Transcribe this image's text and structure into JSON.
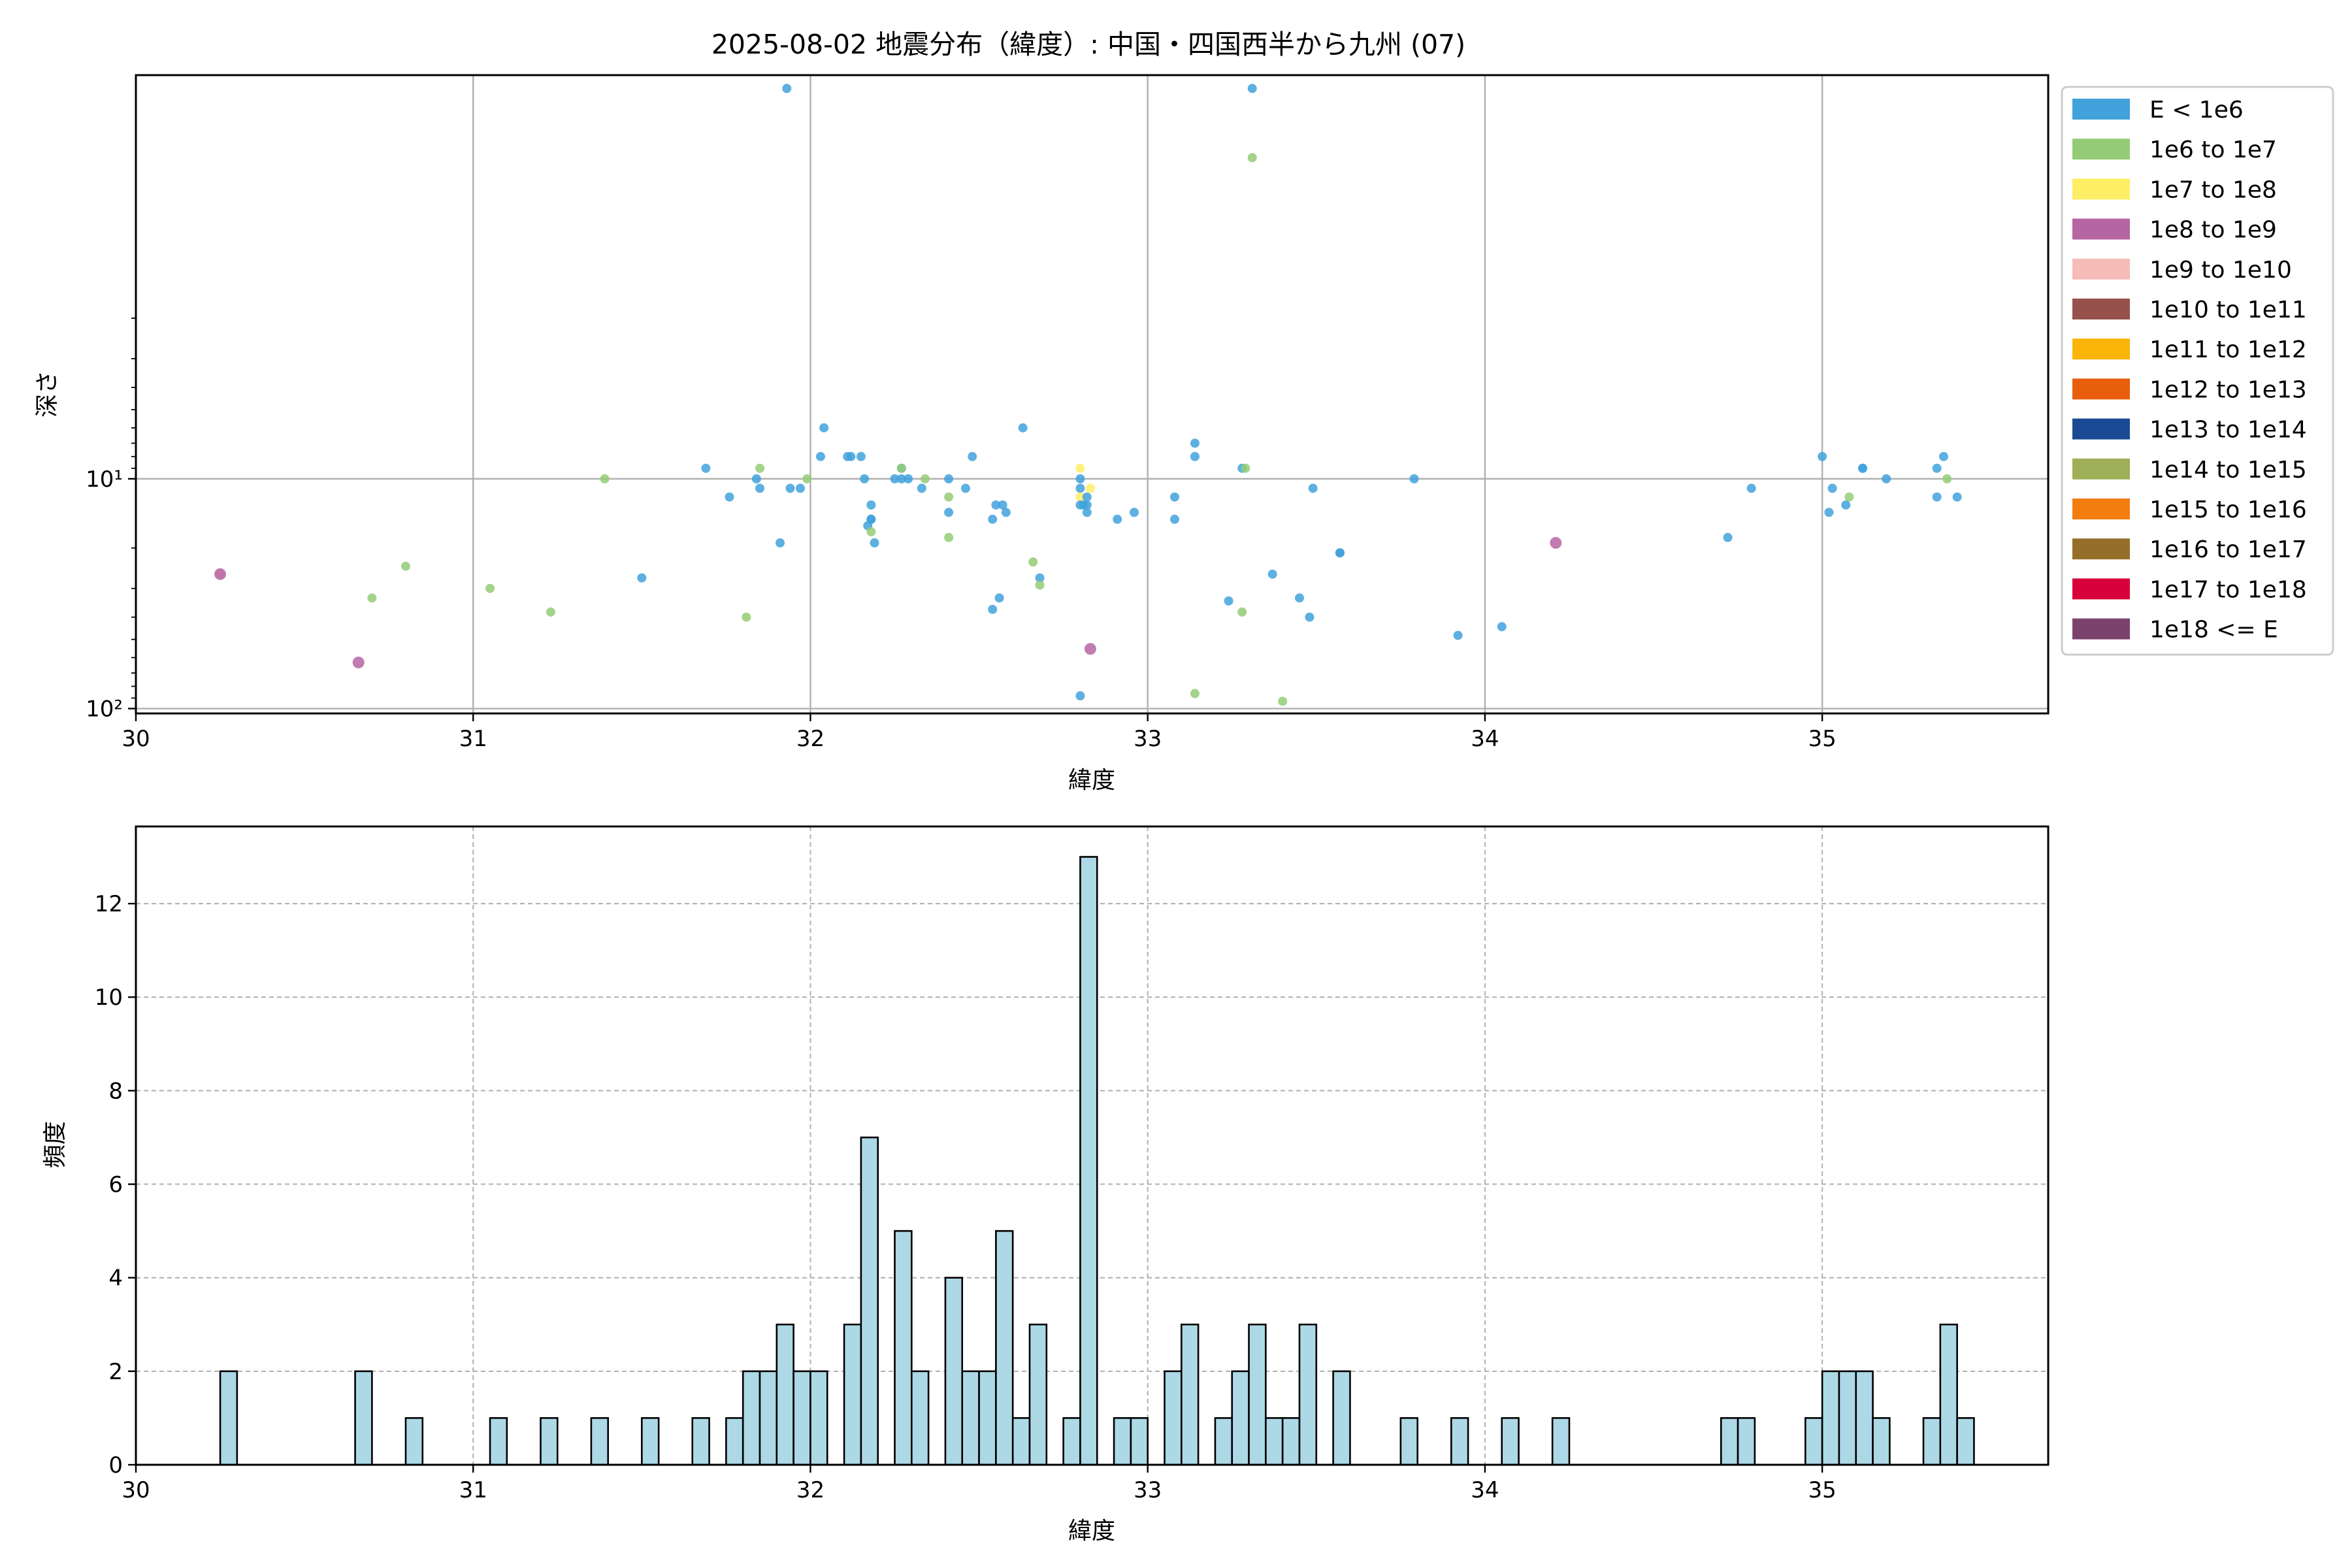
{
  "chart_data": [
    {
      "type": "scatter",
      "title": "2025-08-02 地震分布（緯度）: 中国・四国西半から九州 (07)",
      "xlabel": "緯度",
      "ylabel": "深さ",
      "xlim": [
        30,
        35.67
      ],
      "ylim": [
        105,
        0.175
      ],
      "yscale": "log",
      "y_inverted": true,
      "grid": true,
      "x_ticks": [
        "30",
        "31",
        "32",
        "33",
        "34",
        "35"
      ],
      "y_ticks": [
        "10¹",
        "10²"
      ],
      "legend_position": "outside-right",
      "legend": [
        {
          "label": "E < 1e6",
          "color": "#41a2dc"
        },
        {
          "label": "1e6 to 1e7",
          "color": "#94cc76"
        },
        {
          "label": "1e7 to 1e8",
          "color": "#fdee65"
        },
        {
          "label": "1e8 to 1e9",
          "color": "#b665a3"
        },
        {
          "label": "1e9 to 1e10",
          "color": "#f5bcb8"
        },
        {
          "label": "1e10 to 1e11",
          "color": "#96514d"
        },
        {
          "label": "1e11 to 1e12",
          "color": "#fab40a"
        },
        {
          "label": "1e12 to 1e13",
          "color": "#e95e0d"
        },
        {
          "label": "1e13 to 1e14",
          "color": "#1a4a94"
        },
        {
          "label": "1e14 to 1e15",
          "color": "#9faf57"
        },
        {
          "label": "1e15 to 1e16",
          "color": "#f47d10"
        },
        {
          "label": "1e16 to 1e17",
          "color": "#956f29"
        },
        {
          "label": "1e17 to 1e18",
          "color": "#d7003a"
        },
        {
          "label": "1e18 <= E",
          "color": "#7b426e"
        }
      ],
      "points": [
        {
          "x": 31.93,
          "y": 0.2,
          "c": 0
        },
        {
          "x": 33.31,
          "y": 0.2,
          "c": 0
        },
        {
          "x": 33.31,
          "y": 0.4,
          "c": 1
        },
        {
          "x": 32.04,
          "y": 6.0,
          "c": 0
        },
        {
          "x": 32.63,
          "y": 6.0,
          "c": 0
        },
        {
          "x": 33.14,
          "y": 7.0,
          "c": 0
        },
        {
          "x": 32.03,
          "y": 8.0,
          "c": 0
        },
        {
          "x": 32.11,
          "y": 8.0,
          "c": 0
        },
        {
          "x": 32.12,
          "y": 8.0,
          "c": 0
        },
        {
          "x": 32.15,
          "y": 8.0,
          "c": 0
        },
        {
          "x": 32.48,
          "y": 8.0,
          "c": 0
        },
        {
          "x": 33.14,
          "y": 8.0,
          "c": 0
        },
        {
          "x": 35.0,
          "y": 8.0,
          "c": 0
        },
        {
          "x": 35.36,
          "y": 8.0,
          "c": 0
        },
        {
          "x": 31.69,
          "y": 9.0,
          "c": 0
        },
        {
          "x": 31.85,
          "y": 9.0,
          "c": 1
        },
        {
          "x": 32.27,
          "y": 9.0,
          "c": 0
        },
        {
          "x": 32.27,
          "y": 9.0,
          "c": 1
        },
        {
          "x": 32.8,
          "y": 9.0,
          "c": 2
        },
        {
          "x": 33.28,
          "y": 9.0,
          "c": 0
        },
        {
          "x": 33.29,
          "y": 9.0,
          "c": 1
        },
        {
          "x": 35.12,
          "y": 9.0,
          "c": 0
        },
        {
          "x": 35.12,
          "y": 9.0,
          "c": 0
        },
        {
          "x": 35.34,
          "y": 9.0,
          "c": 0
        },
        {
          "x": 31.39,
          "y": 10.0,
          "c": 1
        },
        {
          "x": 31.84,
          "y": 10.0,
          "c": 0
        },
        {
          "x": 31.99,
          "y": 10.0,
          "c": 1
        },
        {
          "x": 32.16,
          "y": 10.0,
          "c": 0
        },
        {
          "x": 32.25,
          "y": 10.0,
          "c": 0
        },
        {
          "x": 32.27,
          "y": 10.0,
          "c": 0
        },
        {
          "x": 32.29,
          "y": 10.0,
          "c": 0
        },
        {
          "x": 32.34,
          "y": 10.0,
          "c": 1
        },
        {
          "x": 32.41,
          "y": 10.0,
          "c": 0
        },
        {
          "x": 32.8,
          "y": 10.0,
          "c": 0
        },
        {
          "x": 33.79,
          "y": 10.0,
          "c": 0
        },
        {
          "x": 35.19,
          "y": 10.0,
          "c": 0
        },
        {
          "x": 35.37,
          "y": 10.0,
          "c": 1
        },
        {
          "x": 31.85,
          "y": 11.0,
          "c": 0
        },
        {
          "x": 31.94,
          "y": 11.0,
          "c": 0
        },
        {
          "x": 31.97,
          "y": 11.0,
          "c": 0
        },
        {
          "x": 32.33,
          "y": 11.0,
          "c": 0
        },
        {
          "x": 32.46,
          "y": 11.0,
          "c": 0
        },
        {
          "x": 32.8,
          "y": 11.0,
          "c": 0
        },
        {
          "x": 32.83,
          "y": 11.0,
          "c": 2
        },
        {
          "x": 33.49,
          "y": 11.0,
          "c": 0
        },
        {
          "x": 34.79,
          "y": 11.0,
          "c": 0
        },
        {
          "x": 35.03,
          "y": 11.0,
          "c": 0
        },
        {
          "x": 31.76,
          "y": 12.0,
          "c": 0
        },
        {
          "x": 32.41,
          "y": 12.0,
          "c": 1
        },
        {
          "x": 32.8,
          "y": 12.0,
          "c": 2
        },
        {
          "x": 32.82,
          "y": 12.0,
          "c": 0
        },
        {
          "x": 33.08,
          "y": 12.0,
          "c": 0
        },
        {
          "x": 35.08,
          "y": 12.0,
          "c": 1
        },
        {
          "x": 35.34,
          "y": 12.0,
          "c": 0
        },
        {
          "x": 35.4,
          "y": 12.0,
          "c": 0
        },
        {
          "x": 32.18,
          "y": 13.0,
          "c": 0
        },
        {
          "x": 32.55,
          "y": 13.0,
          "c": 0
        },
        {
          "x": 32.57,
          "y": 13.0,
          "c": 0
        },
        {
          "x": 32.8,
          "y": 13.0,
          "c": 0
        },
        {
          "x": 32.81,
          "y": 13.0,
          "c": 0
        },
        {
          "x": 32.82,
          "y": 13.0,
          "c": 0
        },
        {
          "x": 35.07,
          "y": 13.0,
          "c": 0
        },
        {
          "x": 32.41,
          "y": 14.0,
          "c": 0
        },
        {
          "x": 32.58,
          "y": 14.0,
          "c": 0
        },
        {
          "x": 32.82,
          "y": 14.0,
          "c": 0
        },
        {
          "x": 32.96,
          "y": 14.0,
          "c": 0
        },
        {
          "x": 35.02,
          "y": 14.0,
          "c": 0
        },
        {
          "x": 32.18,
          "y": 15.0,
          "c": 0
        },
        {
          "x": 32.18,
          "y": 15.0,
          "c": 0
        },
        {
          "x": 32.54,
          "y": 15.0,
          "c": 0
        },
        {
          "x": 32.91,
          "y": 15.0,
          "c": 0
        },
        {
          "x": 33.08,
          "y": 15.0,
          "c": 0
        },
        {
          "x": 32.17,
          "y": 16.0,
          "c": 0
        },
        {
          "x": 32.18,
          "y": 17.0,
          "c": 1
        },
        {
          "x": 32.41,
          "y": 18.0,
          "c": 1
        },
        {
          "x": 34.72,
          "y": 18.0,
          "c": 0
        },
        {
          "x": 31.91,
          "y": 19.0,
          "c": 0
        },
        {
          "x": 32.19,
          "y": 19.0,
          "c": 0
        },
        {
          "x": 34.21,
          "y": 19.0,
          "c": 3
        },
        {
          "x": 33.57,
          "y": 21.0,
          "c": 0
        },
        {
          "x": 33.57,
          "y": 21.0,
          "c": 0
        },
        {
          "x": 32.66,
          "y": 23.0,
          "c": 1
        },
        {
          "x": 30.8,
          "y": 24.0,
          "c": 1
        },
        {
          "x": 30.25,
          "y": 26.0,
          "c": 4
        },
        {
          "x": 30.25,
          "y": 26.0,
          "c": 3
        },
        {
          "x": 33.37,
          "y": 26.0,
          "c": 0
        },
        {
          "x": 31.5,
          "y": 27.0,
          "c": 0
        },
        {
          "x": 32.68,
          "y": 27.0,
          "c": 0
        },
        {
          "x": 32.68,
          "y": 29.0,
          "c": 1
        },
        {
          "x": 31.05,
          "y": 30.0,
          "c": 1
        },
        {
          "x": 30.7,
          "y": 33.0,
          "c": 1
        },
        {
          "x": 32.56,
          "y": 33.0,
          "c": 0
        },
        {
          "x": 33.45,
          "y": 33.0,
          "c": 0
        },
        {
          "x": 33.24,
          "y": 34.0,
          "c": 0
        },
        {
          "x": 32.54,
          "y": 37.0,
          "c": 0
        },
        {
          "x": 31.23,
          "y": 38.0,
          "c": 1
        },
        {
          "x": 33.28,
          "y": 38.0,
          "c": 1
        },
        {
          "x": 31.81,
          "y": 40.0,
          "c": 1
        },
        {
          "x": 33.48,
          "y": 40.0,
          "c": 0
        },
        {
          "x": 34.05,
          "y": 44.0,
          "c": 0
        },
        {
          "x": 33.92,
          "y": 48.0,
          "c": 0
        },
        {
          "x": 32.83,
          "y": 55.0,
          "c": 3
        },
        {
          "x": 30.66,
          "y": 63.0,
          "c": 3
        },
        {
          "x": 33.14,
          "y": 86.0,
          "c": 1
        },
        {
          "x": 32.8,
          "y": 88.0,
          "c": 0
        },
        {
          "x": 33.4,
          "y": 93.0,
          "c": 1
        }
      ]
    },
    {
      "type": "bar",
      "title": "",
      "xlabel": "緯度",
      "ylabel": "頻度",
      "xlim": [
        30,
        35.67
      ],
      "ylim": [
        0,
        13.65
      ],
      "bin_start": 30.0,
      "bin_width": 0.05,
      "color": "#add8e6",
      "edgecolor": "#000000",
      "grid": "dashed",
      "x_ticks": [
        "30",
        "31",
        "32",
        "33",
        "34",
        "35"
      ],
      "y_ticks": [
        "0",
        "2",
        "4",
        "6",
        "8",
        "10",
        "12"
      ],
      "bins": [
        {
          "i": 5,
          "v": 2
        },
        {
          "i": 13,
          "v": 2
        },
        {
          "i": 16,
          "v": 1
        },
        {
          "i": 21,
          "v": 1
        },
        {
          "i": 24,
          "v": 1
        },
        {
          "i": 27,
          "v": 1
        },
        {
          "i": 30,
          "v": 1
        },
        {
          "i": 33,
          "v": 1
        },
        {
          "i": 35,
          "v": 1
        },
        {
          "i": 36,
          "v": 2
        },
        {
          "i": 37,
          "v": 2
        },
        {
          "i": 38,
          "v": 3
        },
        {
          "i": 39,
          "v": 2
        },
        {
          "i": 40,
          "v": 2
        },
        {
          "i": 42,
          "v": 3
        },
        {
          "i": 43,
          "v": 7
        },
        {
          "i": 45,
          "v": 5
        },
        {
          "i": 46,
          "v": 2
        },
        {
          "i": 48,
          "v": 4
        },
        {
          "i": 49,
          "v": 2
        },
        {
          "i": 50,
          "v": 2
        },
        {
          "i": 51,
          "v": 5
        },
        {
          "i": 52,
          "v": 1
        },
        {
          "i": 53,
          "v": 3
        },
        {
          "i": 55,
          "v": 1
        },
        {
          "i": 56,
          "v": 13
        },
        {
          "i": 58,
          "v": 1
        },
        {
          "i": 59,
          "v": 1
        },
        {
          "i": 61,
          "v": 2
        },
        {
          "i": 62,
          "v": 3
        },
        {
          "i": 64,
          "v": 1
        },
        {
          "i": 65,
          "v": 2
        },
        {
          "i": 66,
          "v": 3
        },
        {
          "i": 67,
          "v": 1
        },
        {
          "i": 68,
          "v": 1
        },
        {
          "i": 69,
          "v": 3
        },
        {
          "i": 71,
          "v": 2
        },
        {
          "i": 75,
          "v": 1
        },
        {
          "i": 78,
          "v": 1
        },
        {
          "i": 81,
          "v": 1
        },
        {
          "i": 84,
          "v": 1
        },
        {
          "i": 94,
          "v": 1
        },
        {
          "i": 95,
          "v": 1
        },
        {
          "i": 99,
          "v": 1
        },
        {
          "i": 100,
          "v": 2
        },
        {
          "i": 101,
          "v": 2
        },
        {
          "i": 102,
          "v": 2
        },
        {
          "i": 103,
          "v": 1
        },
        {
          "i": 106,
          "v": 1
        },
        {
          "i": 107,
          "v": 3
        },
        {
          "i": 108,
          "v": 1
        }
      ]
    }
  ]
}
